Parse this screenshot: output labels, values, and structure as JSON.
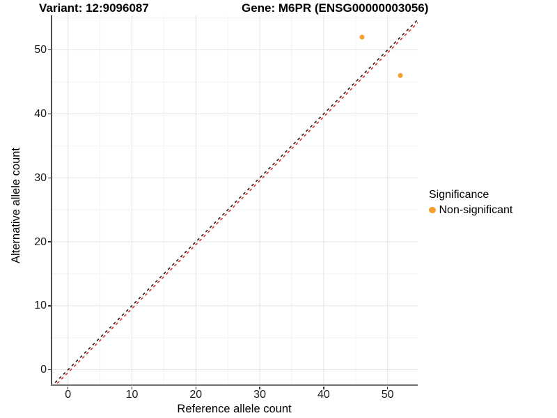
{
  "header": {
    "variant_title": "Variant: 12:9096087",
    "gene_title": "Gene: M6PR (ENSG00000003056)"
  },
  "chart_data": {
    "type": "scatter",
    "xlabel": "Reference allele count",
    "ylabel": "Alternative allele count",
    "xlim": [
      -2.69,
      54.72
    ],
    "ylim": [
      -2.54,
      55.41
    ],
    "x_ticks": [
      0,
      10,
      20,
      30,
      40,
      50
    ],
    "y_ticks": [
      0,
      10,
      20,
      30,
      40,
      50
    ],
    "x_minor_ticks": [
      5,
      15,
      25,
      35,
      45,
      55
    ],
    "y_minor_ticks": [
      5,
      15,
      25,
      35,
      45,
      55
    ],
    "grid": true,
    "point_color": "#F5A02B",
    "point_radius": 3.5,
    "points": [
      {
        "x": 46,
        "y": 52,
        "significance": "Non-significant"
      },
      {
        "x": 52,
        "y": 46,
        "significance": "Non-significant"
      }
    ],
    "lines": [
      {
        "name": "identity-line",
        "style": "dashed",
        "color": "#1C1C1C",
        "slope": 1,
        "intercept": 0
      },
      {
        "name": "fit-line",
        "style": "dashed",
        "color": "#E03030",
        "slope": 1,
        "intercept": -0.45
      }
    ],
    "legend": {
      "title": "Significance",
      "position": "right",
      "items": [
        {
          "label": "Non-significant",
          "color": "#F5A02B"
        }
      ]
    }
  },
  "colors": {
    "background": "#FFFFFF",
    "grid_major": "#E4E4E4",
    "grid_minor": "#F2F2F2",
    "y_axis_line": "#1A1A1A",
    "x_axis_line": "#7E7E7E",
    "tick_mark": "#333333",
    "tick_label": "#1A1A1A"
  }
}
